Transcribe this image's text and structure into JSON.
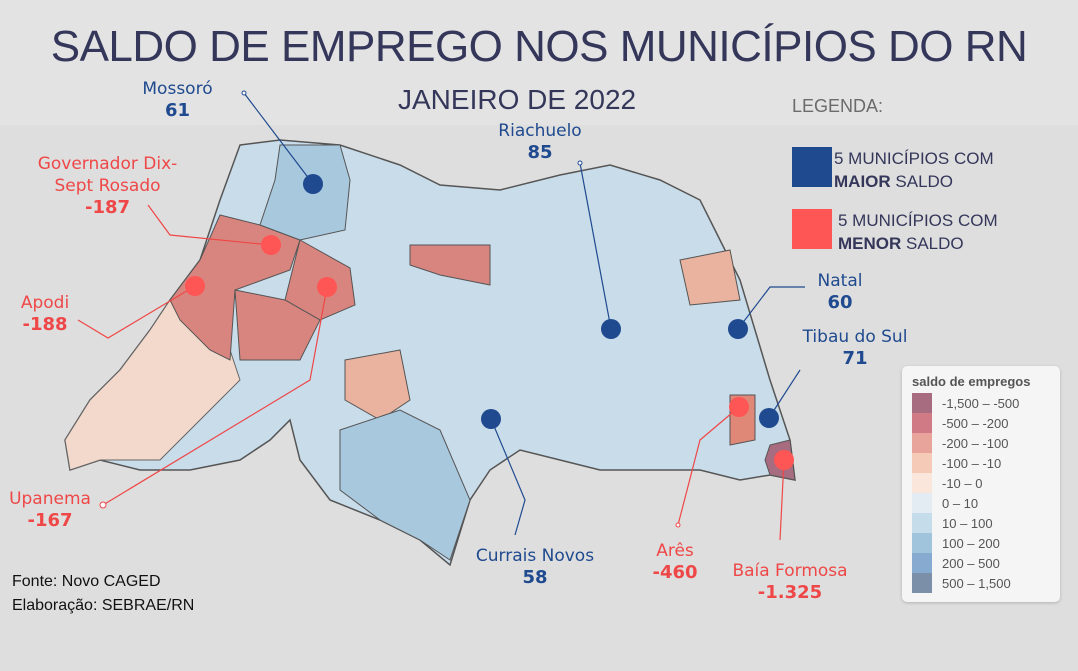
{
  "title": "SALDO DE EMPREGO NOS MUNICÍPIOS DO RN",
  "subtitle": "JANEIRO DE 2022",
  "legend": {
    "heading": "LEGENDA:",
    "items": [
      {
        "prefix": "5 MUNICÍPIOS COM",
        "bold": "MAIOR",
        "suffix": " SALDO",
        "color": "#1f4a8f"
      },
      {
        "prefix": "5 MUNICÍPIOS COM",
        "bold": "MENOR",
        "suffix": " SALDO",
        "color": "#fe5555"
      }
    ]
  },
  "scale": {
    "title": "saldo de empregos",
    "items": [
      {
        "label": "-1,500 – -500",
        "color": "#a86c80"
      },
      {
        "label": "-500 – -200",
        "color": "#d07a85"
      },
      {
        "label": "-200 – -100",
        "color": "#e8a39b"
      },
      {
        "label": "-100 – -10",
        "color": "#f5cbb8"
      },
      {
        "label": "-10 – 0",
        "color": "#fbe6dc"
      },
      {
        "label": "0 – 10",
        "color": "#e3ecf3"
      },
      {
        "label": "10 – 100",
        "color": "#c5dcea"
      },
      {
        "label": "100 – 200",
        "color": "#a0c4dc"
      },
      {
        "label": "200 – 500",
        "color": "#87aad0"
      },
      {
        "label": "500 – 1,500",
        "color": "#7b90a8"
      }
    ]
  },
  "municipalities": {
    "top": [
      {
        "name": "Mossoró",
        "value": "61"
      },
      {
        "name": "Riachuelo",
        "value": "85"
      },
      {
        "name": "Natal",
        "value": "60"
      },
      {
        "name": "Tibau do Sul",
        "value": "71"
      },
      {
        "name": "Currais Novos",
        "value": "58"
      }
    ],
    "bottom": [
      {
        "name": "Governador Dix-Sept Rosado",
        "value": "-187"
      },
      {
        "name": "Apodi",
        "value": "-188"
      },
      {
        "name": "Upanema",
        "value": "-167"
      },
      {
        "name": "Arês",
        "value": "-460"
      },
      {
        "name": "Baía Formosa",
        "value": "-1.325"
      }
    ]
  },
  "source": {
    "line1": "Fonte: Novo CAGED",
    "line2": "Elaboração: SEBRAE/RN"
  }
}
